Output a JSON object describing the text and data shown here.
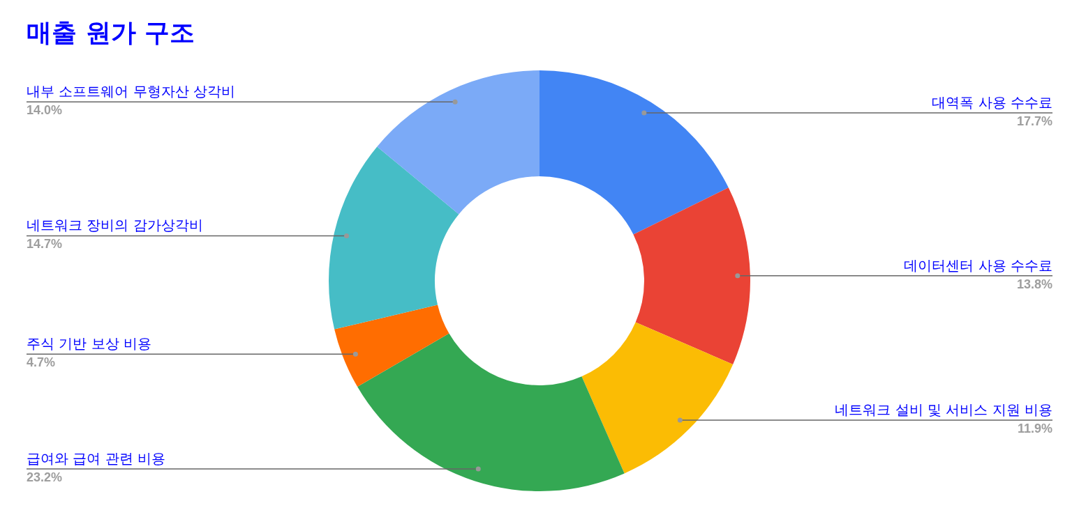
{
  "chart_data": {
    "type": "donut",
    "title": "매출 원가 구조",
    "categories": [
      "대역폭 사용 수수료",
      "데이터센터 사용 수수료",
      "네트워크 설비 및 서비스 지원 비용",
      "급여와 급여 관련 비용",
      "주식 기반 보상 비용",
      "네트워크 장비의 감가상각비",
      "내부 소프트웨어 무형자산 상각비"
    ],
    "values": [
      17.7,
      13.8,
      11.9,
      23.2,
      4.7,
      14.7,
      14.0
    ],
    "colors": [
      "#4285f4",
      "#ea4335",
      "#fbbc04",
      "#34a853",
      "#ff6d01",
      "#46bdc6",
      "#7baaf7"
    ],
    "value_labels": [
      "17.7%",
      "13.8%",
      "11.9%",
      "23.2%",
      "4.7%",
      "14.7%",
      "14.0%"
    ]
  }
}
